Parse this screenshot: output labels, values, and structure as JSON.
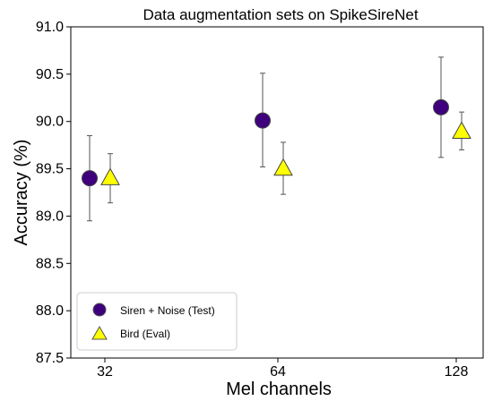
{
  "chart_data": {
    "type": "scatter",
    "title": "Data augmentation sets on SpikeSireNet",
    "xlabel": "Mel channels",
    "ylabel": "Accuracy (%)",
    "categories": [
      "32",
      "64",
      "128"
    ],
    "ylim": [
      87.5,
      91.0
    ],
    "yticks": [
      "87.5",
      "88.0",
      "88.5",
      "89.0",
      "89.5",
      "90.0",
      "90.5",
      "91.0"
    ],
    "grid": false,
    "legend_position": "bottom-left",
    "series": [
      {
        "name": "Siren + Noise (Test)",
        "marker": "circle",
        "color": "#3f007d",
        "values": [
          89.4,
          90.01,
          90.15
        ],
        "error_low": [
          88.95,
          89.52,
          89.62
        ],
        "error_high": [
          89.85,
          90.51,
          90.68
        ]
      },
      {
        "name": "Bird (Eval)",
        "marker": "triangle",
        "color": "#ffff00",
        "values": [
          89.4,
          89.5,
          89.89
        ],
        "error_low": [
          89.14,
          89.23,
          89.7
        ],
        "error_high": [
          89.66,
          89.78,
          90.1
        ]
      }
    ]
  }
}
